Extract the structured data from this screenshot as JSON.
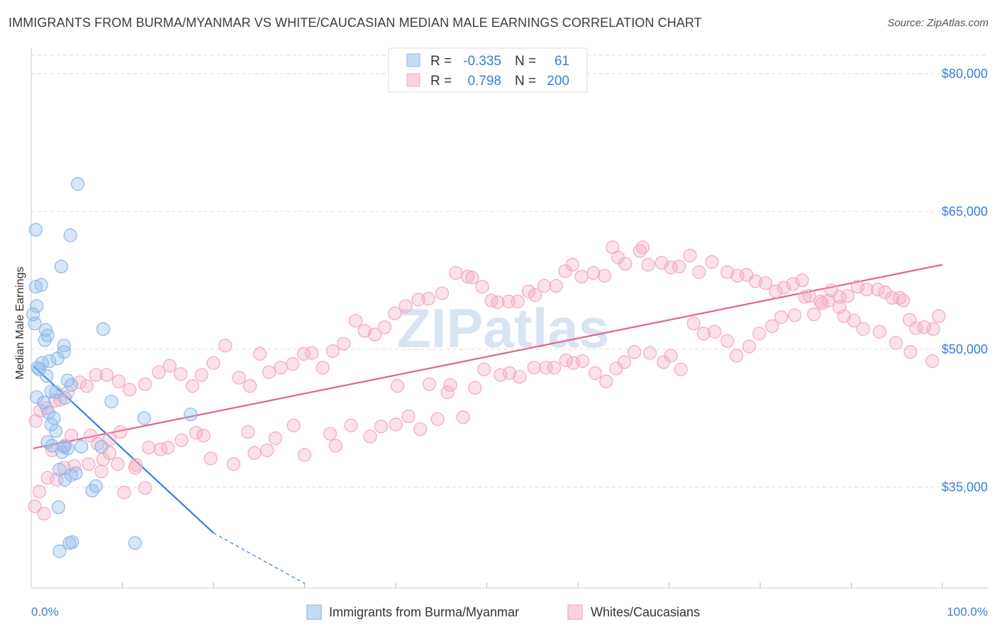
{
  "chart_data": {
    "type": "scatter",
    "title": "IMMIGRANTS FROM BURMA/MYANMAR VS WHITE/CAUCASIAN MEDIAN MALE EARNINGS CORRELATION CHART",
    "source": "Source: ZipAtlas.com",
    "xlabel": "",
    "ylabel": "Median Male Earnings",
    "xlim": [
      0,
      100
    ],
    "ylim": [
      24000,
      82000
    ],
    "x_tick_labels": [
      "0.0%",
      "100.0%"
    ],
    "y_ticks": [
      35000,
      50000,
      65000,
      80000
    ],
    "y_tick_labels": [
      "$35,000",
      "$50,000",
      "$65,000",
      "$80,000"
    ],
    "watermark": "ZIPatlas",
    "legend": {
      "rows": [
        {
          "r_label": "R =",
          "r_value": "-0.335",
          "n_label": "N =",
          "n_value": "61"
        },
        {
          "r_label": "R =",
          "r_value": "0.798",
          "n_label": "N =",
          "n_value": "200"
        }
      ]
    },
    "series": [
      {
        "name": "Immigrants from Burma/Myanmar",
        "color": "#8db8ea",
        "line_color": "#3a7fd6",
        "trend": {
          "x0": 0.2,
          "y0": 48200,
          "x1": 20,
          "y1": 30000,
          "dash_x1": 30,
          "dash_y1": 24500
        },
        "points": [
          [
            0.5,
            56800
          ],
          [
            1.1,
            57000
          ],
          [
            0.6,
            54700
          ],
          [
            0.4,
            52800
          ],
          [
            0.2,
            53800
          ],
          [
            0.5,
            63000
          ],
          [
            5.1,
            68000
          ],
          [
            4.3,
            62400
          ],
          [
            3.3,
            59000
          ],
          [
            7.9,
            52200
          ],
          [
            1.6,
            52100
          ],
          [
            1.8,
            51500
          ],
          [
            1.5,
            51000
          ],
          [
            3.6,
            50400
          ],
          [
            3.6,
            49700
          ],
          [
            2.9,
            49000
          ],
          [
            2.0,
            48700
          ],
          [
            1.2,
            48500
          ],
          [
            0.7,
            48000
          ],
          [
            0.9,
            47800
          ],
          [
            1.7,
            47100
          ],
          [
            4.0,
            46600
          ],
          [
            4.4,
            46100
          ],
          [
            2.7,
            45300
          ],
          [
            2.2,
            45400
          ],
          [
            0.6,
            44800
          ],
          [
            3.7,
            44700
          ],
          [
            1.4,
            44200
          ],
          [
            8.8,
            44300
          ],
          [
            17.5,
            42900
          ],
          [
            12.4,
            42500
          ],
          [
            1.9,
            43100
          ],
          [
            2.5,
            42500
          ],
          [
            2.2,
            41800
          ],
          [
            2.7,
            41100
          ],
          [
            1.8,
            39900
          ],
          [
            2.3,
            39500
          ],
          [
            3.6,
            39400
          ],
          [
            4.0,
            39200
          ],
          [
            5.5,
            39400
          ],
          [
            7.7,
            39400
          ],
          [
            3.4,
            38800
          ],
          [
            3.1,
            36900
          ],
          [
            4.9,
            36500
          ],
          [
            3.7,
            35800
          ],
          [
            4.4,
            36300
          ],
          [
            7.1,
            35100
          ],
          [
            6.7,
            34600
          ],
          [
            3.0,
            32800
          ],
          [
            4.5,
            29000
          ],
          [
            4.2,
            28900
          ],
          [
            3.1,
            28000
          ],
          [
            11.4,
            28900
          ]
        ]
      },
      {
        "name": "Whites/Caucasians",
        "color": "#f4a8c0",
        "line_color": "#e3628f",
        "trend": {
          "x0": 0.2,
          "y0": 39200,
          "x1": 100,
          "y1": 59200
        },
        "points": [
          [
            0.4,
            32900
          ],
          [
            1.4,
            32100
          ],
          [
            0.9,
            34500
          ],
          [
            1.8,
            36000
          ],
          [
            2.8,
            35800
          ],
          [
            3.6,
            37100
          ],
          [
            4.7,
            37300
          ],
          [
            6.3,
            37500
          ],
          [
            7.7,
            36700
          ],
          [
            7.9,
            38000
          ],
          [
            8.6,
            38700
          ],
          [
            9.5,
            37500
          ],
          [
            10.2,
            34400
          ],
          [
            12.5,
            34900
          ],
          [
            11.4,
            37100
          ],
          [
            2.3,
            39000
          ],
          [
            3.7,
            39500
          ],
          [
            4.4,
            40600
          ],
          [
            6.5,
            40600
          ],
          [
            7.3,
            39700
          ],
          [
            8.6,
            40200
          ],
          [
            9.8,
            41000
          ],
          [
            11.5,
            37400
          ],
          [
            12.9,
            39300
          ],
          [
            14.2,
            39100
          ],
          [
            15.0,
            39300
          ],
          [
            16.5,
            40100
          ],
          [
            18.1,
            40900
          ],
          [
            18.9,
            40600
          ],
          [
            19.7,
            38100
          ],
          [
            22.2,
            37500
          ],
          [
            24.5,
            38700
          ],
          [
            25.9,
            39000
          ],
          [
            23.8,
            41000
          ],
          [
            26.8,
            40300
          ],
          [
            28.8,
            41700
          ],
          [
            30.0,
            38500
          ],
          [
            32.8,
            40800
          ],
          [
            33.4,
            39500
          ],
          [
            37.2,
            40500
          ],
          [
            35.1,
            41700
          ],
          [
            38.4,
            41600
          ],
          [
            40.0,
            41800
          ],
          [
            41.4,
            42700
          ],
          [
            42.7,
            41300
          ],
          [
            44.6,
            42400
          ],
          [
            47.4,
            42600
          ],
          [
            40.2,
            46000
          ],
          [
            43.7,
            46200
          ],
          [
            45.7,
            45300
          ],
          [
            46.0,
            46100
          ],
          [
            48.7,
            45800
          ],
          [
            49.7,
            47800
          ],
          [
            51.5,
            47200
          ],
          [
            52.5,
            47400
          ],
          [
            53.6,
            47000
          ],
          [
            55.2,
            48000
          ],
          [
            56.5,
            48000
          ],
          [
            57.4,
            48000
          ],
          [
            58.7,
            48800
          ],
          [
            59.5,
            48500
          ],
          [
            60.5,
            48700
          ],
          [
            61.9,
            47400
          ],
          [
            63.1,
            46500
          ],
          [
            64.2,
            47900
          ],
          [
            65.1,
            48600
          ],
          [
            66.2,
            49700
          ],
          [
            67.9,
            49600
          ],
          [
            69.4,
            48600
          ],
          [
            70.2,
            49300
          ],
          [
            71.3,
            47800
          ],
          [
            72.7,
            52800
          ],
          [
            73.8,
            51700
          ],
          [
            75.0,
            51900
          ],
          [
            76.4,
            50900
          ],
          [
            77.4,
            49300
          ],
          [
            78.8,
            50300
          ],
          [
            79.9,
            51700
          ],
          [
            81.3,
            52500
          ],
          [
            82.3,
            53500
          ],
          [
            83.8,
            53700
          ],
          [
            84.9,
            55700
          ],
          [
            85.9,
            53800
          ],
          [
            86.8,
            55000
          ],
          [
            87.8,
            56400
          ],
          [
            88.7,
            55700
          ],
          [
            89.6,
            55800
          ],
          [
            90.7,
            56800
          ],
          [
            91.7,
            56500
          ],
          [
            92.9,
            56500
          ],
          [
            93.7,
            56200
          ],
          [
            94.5,
            55600
          ],
          [
            95.3,
            55600
          ],
          [
            95.7,
            55300
          ],
          [
            96.4,
            53200
          ],
          [
            97.1,
            52300
          ],
          [
            98.0,
            52400
          ],
          [
            99.0,
            52200
          ],
          [
            99.6,
            53600
          ],
          [
            98.9,
            48700
          ],
          [
            96.5,
            49700
          ],
          [
            94.9,
            50700
          ],
          [
            93.1,
            51900
          ],
          [
            91.3,
            52200
          ],
          [
            90.3,
            53100
          ],
          [
            89.2,
            53600
          ],
          [
            88.7,
            54600
          ],
          [
            87.5,
            55300
          ],
          [
            86.6,
            55200
          ],
          [
            85.4,
            55800
          ],
          [
            84.6,
            57500
          ],
          [
            83.6,
            57100
          ],
          [
            82.6,
            56700
          ],
          [
            81.7,
            56300
          ],
          [
            80.6,
            57200
          ],
          [
            79.5,
            57400
          ],
          [
            78.5,
            58100
          ],
          [
            77.5,
            58000
          ],
          [
            76.4,
            58400
          ],
          [
            74.7,
            59500
          ],
          [
            73.3,
            58400
          ],
          [
            72.3,
            60200
          ],
          [
            71.1,
            59000
          ],
          [
            70.2,
            58900
          ],
          [
            69.2,
            59400
          ],
          [
            67.7,
            59200
          ],
          [
            67.1,
            61100
          ],
          [
            66.8,
            60700
          ],
          [
            65.2,
            59300
          ],
          [
            64.4,
            60000
          ],
          [
            63.8,
            61100
          ],
          [
            62.9,
            58000
          ],
          [
            61.7,
            58300
          ],
          [
            60.4,
            57900
          ],
          [
            59.4,
            59200
          ],
          [
            58.6,
            58500
          ],
          [
            57.6,
            56900
          ],
          [
            56.3,
            56900
          ],
          [
            55.3,
            55900
          ],
          [
            54.6,
            56300
          ],
          [
            53.4,
            55200
          ],
          [
            52.4,
            55200
          ],
          [
            51.2,
            55100
          ],
          [
            50.5,
            55300
          ],
          [
            49.5,
            56800
          ],
          [
            48.4,
            57800
          ],
          [
            47.9,
            57900
          ],
          [
            46.6,
            58300
          ],
          [
            45.1,
            56100
          ],
          [
            43.6,
            55500
          ],
          [
            42.5,
            55400
          ],
          [
            41.1,
            54700
          ],
          [
            39.9,
            53900
          ],
          [
            38.8,
            52400
          ],
          [
            37.7,
            51600
          ],
          [
            36.6,
            52000
          ],
          [
            35.6,
            53100
          ],
          [
            34.3,
            50600
          ],
          [
            33.1,
            49800
          ],
          [
            32.0,
            48000
          ],
          [
            30.8,
            49600
          ],
          [
            29.9,
            49500
          ],
          [
            28.7,
            48400
          ],
          [
            27.4,
            48000
          ],
          [
            26.1,
            47500
          ],
          [
            25.1,
            49500
          ],
          [
            24.0,
            46000
          ],
          [
            22.8,
            46900
          ],
          [
            21.3,
            50400
          ],
          [
            20.0,
            48500
          ],
          [
            18.7,
            47200
          ],
          [
            17.7,
            46000
          ],
          [
            16.4,
            47300
          ],
          [
            15.2,
            48200
          ],
          [
            14.0,
            47500
          ],
          [
            12.5,
            46200
          ],
          [
            10.8,
            45600
          ],
          [
            9.6,
            46500
          ],
          [
            8.3,
            47200
          ],
          [
            7.1,
            47200
          ],
          [
            6.1,
            46000
          ],
          [
            5.3,
            46400
          ],
          [
            4.0,
            45300
          ],
          [
            3.2,
            44500
          ],
          [
            2.6,
            44400
          ],
          [
            1.7,
            43600
          ],
          [
            1.0,
            43300
          ],
          [
            0.5,
            42200
          ]
        ]
      }
    ]
  }
}
